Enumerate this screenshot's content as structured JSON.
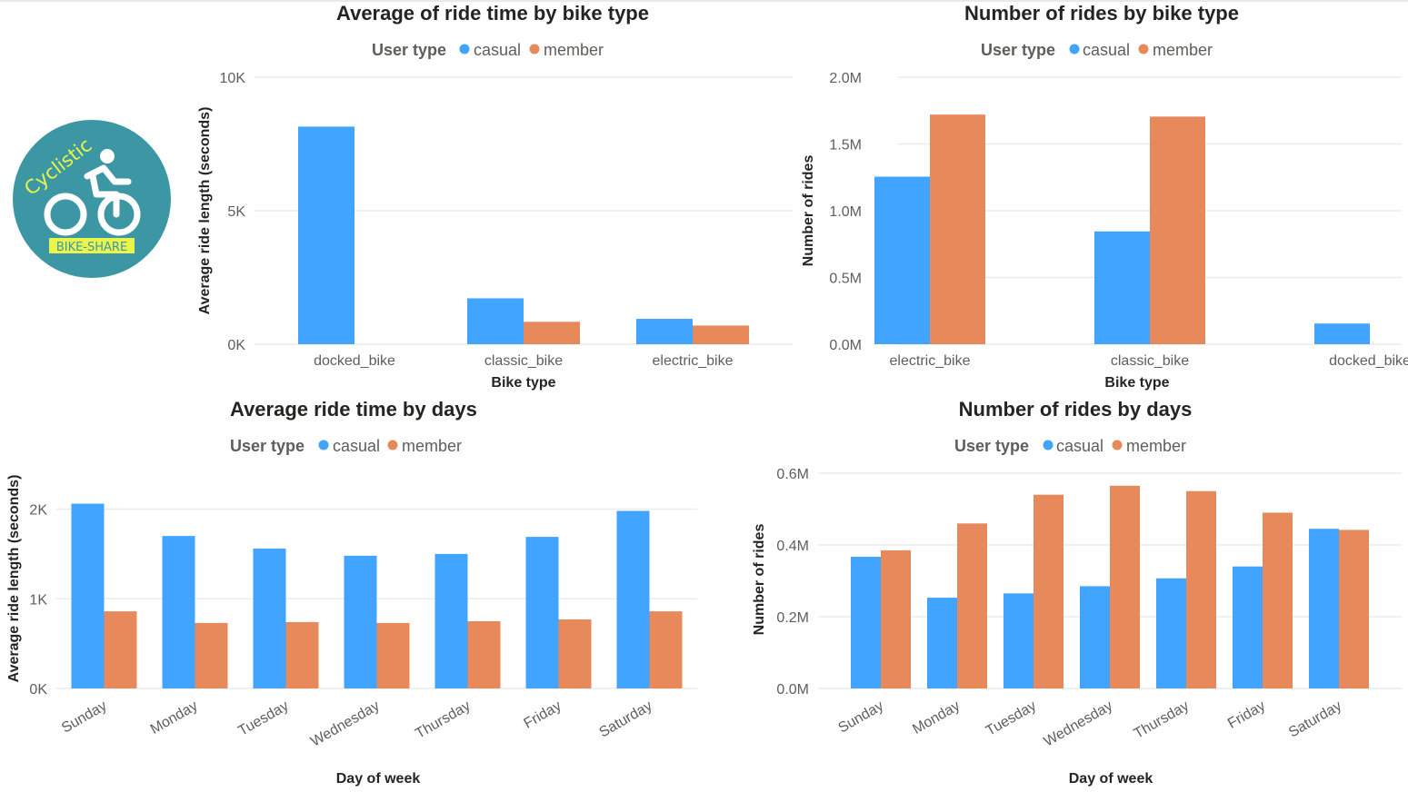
{
  "colors": {
    "casual": "#41a4ff",
    "member": "#e8895c",
    "logo_bg": "#3d96a3",
    "logo_text": "#e9f54b"
  },
  "logo": {
    "icon": "cyclist-icon",
    "line1": "Cyclistic",
    "line2": "BIKE-SHARE"
  },
  "chart_data": [
    {
      "id": "avg-time-bike",
      "type": "bar",
      "title": "Average of ride time by bike type",
      "legend": {
        "title": "User type",
        "items": [
          "casual",
          "member"
        ],
        "position": "top"
      },
      "xlabel": "Bike type",
      "ylabel": "Average ride length (seconds)",
      "categories": [
        "docked_bike",
        "classic_bike",
        "electric_bike"
      ],
      "series": [
        {
          "name": "casual",
          "values": [
            8150,
            1720,
            950
          ]
        },
        {
          "name": "member",
          "values": [
            null,
            840,
            700
          ]
        }
      ],
      "ylim": [
        0,
        10000
      ],
      "yticks": [
        0,
        5000,
        10000
      ],
      "yticklabels": [
        "0K",
        "5K",
        "10K"
      ],
      "grid": true
    },
    {
      "id": "num-rides-bike",
      "type": "bar",
      "title": "Number of rides by bike type",
      "legend": {
        "title": "User type",
        "items": [
          "casual",
          "member"
        ],
        "position": "top"
      },
      "xlabel": "Bike type",
      "ylabel": "Number of rides",
      "categories": [
        "electric_bike",
        "classic_bike",
        "docked_bike"
      ],
      "series": [
        {
          "name": "casual",
          "values": [
            1255000,
            845000,
            155000
          ]
        },
        {
          "name": "member",
          "values": [
            1720000,
            1705000,
            null
          ]
        }
      ],
      "ylim": [
        0,
        2000000
      ],
      "yticks": [
        0,
        500000,
        1000000,
        1500000,
        2000000
      ],
      "yticklabels": [
        "0.0M",
        "0.5M",
        "1.0M",
        "1.5M",
        "2.0M"
      ],
      "grid": true
    },
    {
      "id": "avg-time-days",
      "type": "bar",
      "title": "Average ride time by days",
      "legend": {
        "title": "User type",
        "items": [
          "casual",
          "member"
        ],
        "position": "top"
      },
      "xlabel": "Day of week",
      "ylabel": "Average ride length (seconds)",
      "categories": [
        "Sunday",
        "Monday",
        "Tuesday",
        "Wednesday",
        "Thursday",
        "Friday",
        "Saturday"
      ],
      "series": [
        {
          "name": "casual",
          "values": [
            2060,
            1700,
            1560,
            1480,
            1500,
            1690,
            1980
          ]
        },
        {
          "name": "member",
          "values": [
            860,
            730,
            740,
            730,
            750,
            770,
            860
          ]
        }
      ],
      "ylim": [
        0,
        2400
      ],
      "yticks": [
        0,
        1000,
        2000
      ],
      "yticklabels": [
        "0K",
        "1K",
        "2K"
      ],
      "grid": true
    },
    {
      "id": "num-rides-days",
      "type": "bar",
      "title": "Number of rides by days",
      "legend": {
        "title": "User type",
        "items": [
          "casual",
          "member"
        ],
        "position": "top"
      },
      "xlabel": "Day of week",
      "ylabel": "Number of rides",
      "categories": [
        "Sunday",
        "Monday",
        "Tuesday",
        "Wednesday",
        "Thursday",
        "Friday",
        "Saturday"
      ],
      "series": [
        {
          "name": "casual",
          "values": [
            367000,
            253000,
            265000,
            285000,
            307000,
            340000,
            445000
          ]
        },
        {
          "name": "member",
          "values": [
            385000,
            460000,
            540000,
            565000,
            550000,
            490000,
            442000
          ]
        }
      ],
      "ylim": [
        0,
        600000
      ],
      "yticks": [
        0,
        200000,
        400000,
        600000
      ],
      "yticklabels": [
        "0.0M",
        "0.2M",
        "0.4M",
        "0.6M"
      ],
      "grid": true
    }
  ]
}
